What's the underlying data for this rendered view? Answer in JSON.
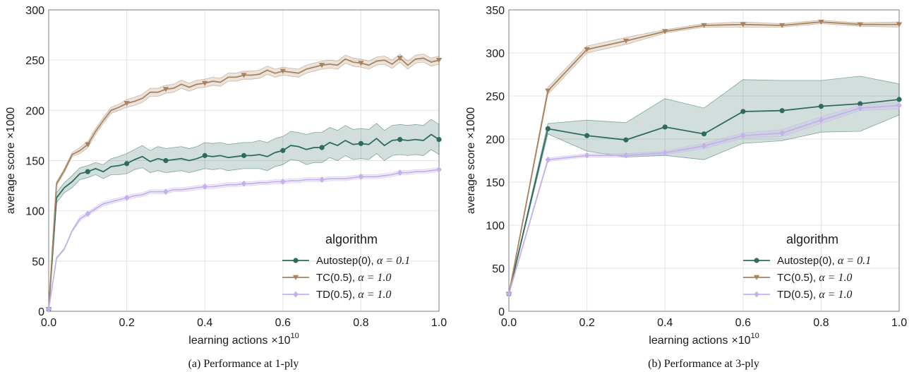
{
  "colors": {
    "autostep": "#2e6b5e",
    "tc": "#a88360",
    "td": "#c4b0eb"
  },
  "chart_data": [
    {
      "type": "line",
      "caption": "(a) Performance at 1-ply",
      "xlabel": "learning actions",
      "xlabel_exp": "10",
      "ylabel": "average score",
      "ylabel_factor": "1000",
      "xlim": [
        0.0,
        1.0
      ],
      "ylim": [
        0,
        300
      ],
      "xticks": [
        "0.0",
        "0.2",
        "0.4",
        "0.6",
        "0.8",
        "1.0"
      ],
      "yticks": [
        "0",
        "50",
        "100",
        "150",
        "200",
        "250",
        "300"
      ],
      "grid": true,
      "legend": {
        "placement": "bottom-right",
        "title": "algorithm",
        "entries": [
          {
            "name": "Autostep(0), ",
            "math": "α = 0.1"
          },
          {
            "name": "TC(0.5), ",
            "math": "α = 1.0"
          },
          {
            "name": "TD(0.5), ",
            "math": "α = 1.0"
          }
        ]
      },
      "series": [
        {
          "key": "autostep",
          "marker": "circle",
          "x": [
            0.0,
            0.02,
            0.04,
            0.06,
            0.08,
            0.1,
            0.12,
            0.14,
            0.16,
            0.18,
            0.2,
            0.22,
            0.24,
            0.26,
            0.28,
            0.3,
            0.32,
            0.34,
            0.36,
            0.38,
            0.4,
            0.42,
            0.44,
            0.46,
            0.48,
            0.5,
            0.52,
            0.54,
            0.56,
            0.58,
            0.6,
            0.62,
            0.64,
            0.66,
            0.68,
            0.7,
            0.72,
            0.74,
            0.76,
            0.78,
            0.8,
            0.82,
            0.84,
            0.86,
            0.88,
            0.9,
            0.92,
            0.94,
            0.96,
            0.98,
            1.0
          ],
          "y": [
            2,
            113,
            123,
            129,
            137,
            139,
            142,
            139,
            144,
            145,
            147,
            151,
            154,
            149,
            152,
            150,
            151,
            152,
            150,
            152,
            155,
            154,
            155,
            153,
            154,
            155,
            155,
            156,
            154,
            158,
            160,
            165,
            164,
            161,
            163,
            163,
            168,
            165,
            170,
            166,
            167,
            166,
            172,
            165,
            170,
            171,
            170,
            171,
            170,
            176,
            171
          ],
          "band": [
            0,
            5,
            5,
            6,
            6,
            6,
            6,
            7,
            8,
            9,
            10,
            10,
            11,
            11,
            12,
            12,
            12,
            12,
            12,
            12,
            13,
            13,
            13,
            13,
            13,
            13,
            13,
            14,
            14,
            14,
            14,
            14,
            14,
            15,
            15,
            15,
            15,
            15,
            15,
            15,
            15,
            15,
            15,
            15,
            15,
            15,
            15,
            15,
            15,
            15,
            15
          ]
        },
        {
          "key": "tc",
          "marker": "triangle",
          "x": [
            0.0,
            0.02,
            0.04,
            0.06,
            0.08,
            0.1,
            0.12,
            0.14,
            0.16,
            0.18,
            0.2,
            0.22,
            0.24,
            0.26,
            0.28,
            0.3,
            0.32,
            0.34,
            0.36,
            0.38,
            0.4,
            0.42,
            0.44,
            0.46,
            0.48,
            0.5,
            0.52,
            0.54,
            0.56,
            0.58,
            0.6,
            0.62,
            0.64,
            0.66,
            0.68,
            0.7,
            0.72,
            0.74,
            0.76,
            0.78,
            0.8,
            0.82,
            0.84,
            0.86,
            0.88,
            0.9,
            0.92,
            0.94,
            0.96,
            0.98,
            1.0
          ],
          "y": [
            2,
            127,
            140,
            156,
            160,
            166,
            179,
            190,
            200,
            203,
            207,
            209,
            212,
            218,
            218,
            221,
            222,
            226,
            223,
            226,
            227,
            229,
            228,
            233,
            233,
            235,
            235,
            236,
            240,
            237,
            239,
            238,
            237,
            241,
            243,
            245,
            246,
            245,
            251,
            248,
            247,
            245,
            249,
            250,
            246,
            252,
            245,
            251,
            252,
            248,
            250
          ],
          "band": [
            0,
            2,
            2,
            2,
            3,
            3,
            3,
            3,
            3,
            3,
            4,
            4,
            4,
            4,
            4,
            4,
            4,
            4,
            4,
            4,
            4,
            4,
            4,
            4,
            4,
            4,
            4,
            4,
            4,
            4,
            4,
            4,
            4,
            4,
            4,
            4,
            4,
            4,
            4,
            4,
            4,
            4,
            4,
            4,
            4,
            4,
            4,
            4,
            4,
            4,
            4
          ]
        },
        {
          "key": "td",
          "marker": "diamond",
          "x": [
            0.0,
            0.02,
            0.04,
            0.06,
            0.08,
            0.1,
            0.12,
            0.14,
            0.16,
            0.18,
            0.2,
            0.22,
            0.24,
            0.26,
            0.28,
            0.3,
            0.32,
            0.34,
            0.36,
            0.38,
            0.4,
            0.42,
            0.44,
            0.46,
            0.48,
            0.5,
            0.52,
            0.54,
            0.56,
            0.58,
            0.6,
            0.62,
            0.64,
            0.66,
            0.68,
            0.7,
            0.72,
            0.74,
            0.76,
            0.78,
            0.8,
            0.82,
            0.84,
            0.86,
            0.88,
            0.9,
            0.92,
            0.94,
            0.96,
            0.98,
            1.0
          ],
          "y": [
            2,
            53,
            62,
            80,
            92,
            97,
            102,
            107,
            109,
            111,
            113,
            115,
            116,
            119,
            119,
            119,
            121,
            121,
            122,
            123,
            124,
            124,
            125,
            126,
            126,
            127,
            127,
            128,
            128,
            129,
            129,
            130,
            130,
            131,
            131,
            131,
            132,
            132,
            132,
            133,
            134,
            134,
            134,
            135,
            136,
            138,
            138,
            139,
            139,
            140,
            141
          ],
          "band": [
            0,
            1,
            1,
            1,
            2,
            2,
            2,
            2,
            2,
            2,
            2,
            2,
            2,
            2,
            2,
            2,
            2,
            2,
            2,
            2,
            2,
            2,
            2,
            2,
            2,
            2,
            2,
            2,
            2,
            2,
            2,
            2,
            2,
            2,
            2,
            2,
            2,
            2,
            2,
            2,
            2,
            2,
            2,
            2,
            2,
            2,
            2,
            2,
            2,
            2,
            2
          ]
        }
      ]
    },
    {
      "type": "line",
      "caption": "(b) Performance at 3-ply",
      "xlabel": "learning actions",
      "xlabel_exp": "10",
      "ylabel": "average score",
      "ylabel_factor": "1000",
      "xlim": [
        0.0,
        1.0
      ],
      "ylim": [
        0,
        350
      ],
      "xticks": [
        "0.0",
        "0.2",
        "0.4",
        "0.6",
        "0.8",
        "1.0"
      ],
      "yticks": [
        "0",
        "50",
        "100",
        "150",
        "200",
        "250",
        "300",
        "350"
      ],
      "grid": true,
      "legend": {
        "placement": "bottom-right",
        "title": "algorithm",
        "entries": [
          {
            "name": "Autostep(0), ",
            "math": "α = 0.1"
          },
          {
            "name": "TC(0.5), ",
            "math": "α = 1.0"
          },
          {
            "name": "TD(0.5), ",
            "math": "α = 1.0"
          }
        ]
      },
      "series": [
        {
          "key": "autostep",
          "marker": "circle",
          "x": [
            0.0,
            0.1,
            0.2,
            0.3,
            0.4,
            0.5,
            0.6,
            0.7,
            0.8,
            0.9,
            1.0
          ],
          "y": [
            20,
            212,
            204,
            199,
            214,
            206,
            232,
            233,
            238,
            241,
            246
          ],
          "band": [
            0,
            6,
            18,
            20,
            33,
            30,
            37,
            35,
            30,
            32,
            18
          ]
        },
        {
          "key": "tc",
          "marker": "triangle",
          "x": [
            0.0,
            0.1,
            0.2,
            0.3,
            0.4,
            0.5,
            0.6,
            0.7,
            0.8,
            0.9,
            1.0
          ],
          "y": [
            20,
            256,
            304,
            314,
            325,
            332,
            333,
            332,
            336,
            333,
            333
          ],
          "band": [
            0,
            4,
            4,
            4,
            2,
            2,
            3,
            2,
            2,
            2,
            3
          ]
        },
        {
          "key": "td",
          "marker": "diamond",
          "x": [
            0.0,
            0.1,
            0.2,
            0.3,
            0.4,
            0.5,
            0.6,
            0.7,
            0.8,
            0.9,
            1.0
          ],
          "y": [
            20,
            176,
            181,
            181,
            184,
            192,
            204,
            207,
            222,
            236,
            239
          ],
          "band": [
            0,
            2,
            2,
            2,
            2,
            3,
            3,
            4,
            4,
            3,
            4
          ]
        }
      ]
    }
  ]
}
